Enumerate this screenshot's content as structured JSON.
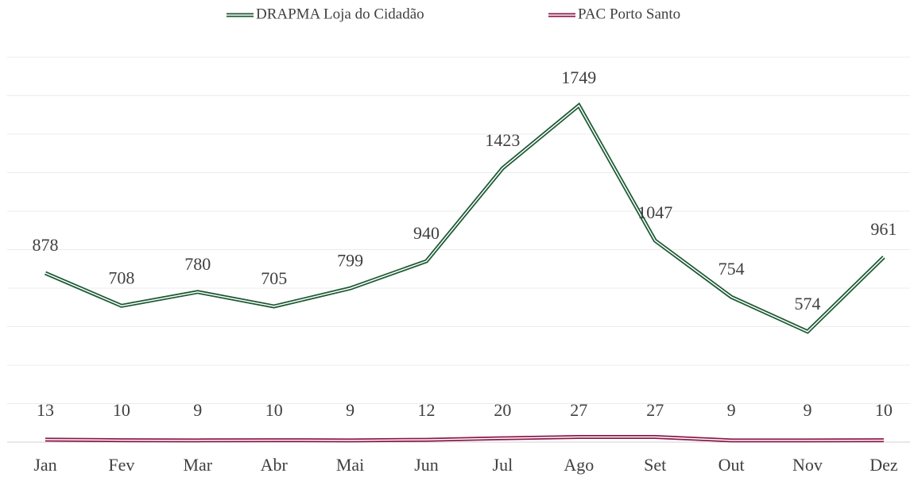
{
  "chart_data": {
    "type": "line",
    "categories": [
      "Jan",
      "Fev",
      "Mar",
      "Abr",
      "Mai",
      "Jun",
      "Jul",
      "Ago",
      "Set",
      "Out",
      "Nov",
      "Dez"
    ],
    "series": [
      {
        "name": "DRAPMA Loja do Cidadão",
        "color": "#1d5a34",
        "values": [
          878,
          708,
          780,
          705,
          799,
          940,
          1423,
          1749,
          1047,
          754,
          574,
          961
        ]
      },
      {
        "name": "PAC Porto Santo",
        "color": "#8c1a4b",
        "values": [
          13,
          10,
          9,
          10,
          9,
          12,
          20,
          27,
          27,
          9,
          9,
          10
        ]
      }
    ],
    "ylim": [
      0,
      2000
    ],
    "yticks": [
      0,
      200,
      400,
      600,
      800,
      1000,
      1200,
      1400,
      1600,
      1800,
      2000
    ],
    "grid": true,
    "legend": "top"
  }
}
